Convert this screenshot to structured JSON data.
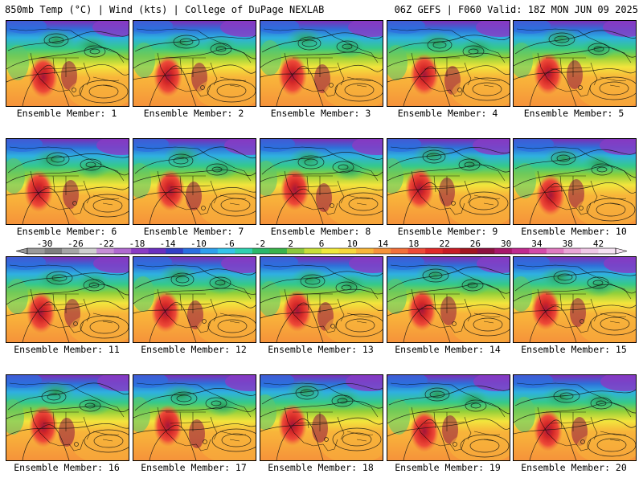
{
  "header": {
    "title": "850mb Temp (°C) | Wind (kts) | College of DuPage NEXLAB",
    "run_info": "06Z GEFS | F060 Valid: 18Z MON JUN 09 2025"
  },
  "members": [
    {
      "label": "Ensemble Member: 1"
    },
    {
      "label": "Ensemble Member: 2"
    },
    {
      "label": "Ensemble Member: 3"
    },
    {
      "label": "Ensemble Member: 4"
    },
    {
      "label": "Ensemble Member: 5"
    },
    {
      "label": "Ensemble Member: 6"
    },
    {
      "label": "Ensemble Member: 7"
    },
    {
      "label": "Ensemble Member: 8"
    },
    {
      "label": "Ensemble Member: 9"
    },
    {
      "label": "Ensemble Member: 10"
    },
    {
      "label": "Ensemble Member: 11"
    },
    {
      "label": "Ensemble Member: 12"
    },
    {
      "label": "Ensemble Member: 13"
    },
    {
      "label": "Ensemble Member: 14"
    },
    {
      "label": "Ensemble Member: 15"
    },
    {
      "label": "Ensemble Member: 16"
    },
    {
      "label": "Ensemble Member: 17"
    },
    {
      "label": "Ensemble Member: 18"
    },
    {
      "label": "Ensemble Member: 19"
    },
    {
      "label": "Ensemble Member: 20"
    }
  ],
  "colorbar": {
    "tick_labels": [
      "-30",
      "-26",
      "-22",
      "-18",
      "-14",
      "-10",
      "-6",
      "-2",
      "2",
      "6",
      "10",
      "14",
      "18",
      "22",
      "26",
      "30",
      "34",
      "38",
      "42"
    ],
    "colors": [
      "#9a9a9a",
      "#7f7f7f",
      "#a6a6a6",
      "#cfcfcf",
      "#c68fd6",
      "#b06ad0",
      "#8a3bc4",
      "#6a2fbf",
      "#3340c6",
      "#2b6fe0",
      "#2fa0ec",
      "#35c4e8",
      "#2fd0b0",
      "#2ab86a",
      "#39b34a",
      "#8cc83c",
      "#c8de3a",
      "#f0e93c",
      "#f7d73b",
      "#f8b63a",
      "#f6933a",
      "#f2703a",
      "#ee4a38",
      "#e02a2a",
      "#c81c26",
      "#a31620",
      "#8e1240",
      "#a8186a",
      "#c02a8e",
      "#d44aa8",
      "#e07ac0",
      "#eaa6d6",
      "#f0c8e6",
      "#f6e2f2"
    ]
  }
}
